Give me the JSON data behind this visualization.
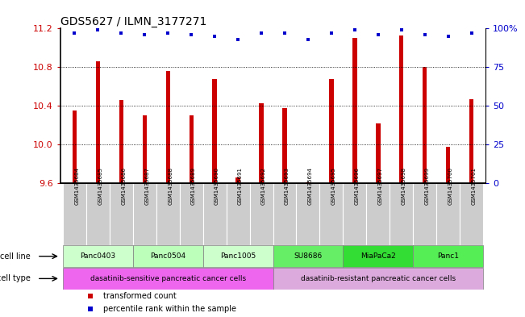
{
  "title": "GDS5627 / ILMN_3177271",
  "samples": [
    "GSM1435684",
    "GSM1435685",
    "GSM1435686",
    "GSM1435687",
    "GSM1435688",
    "GSM1435689",
    "GSM1435690",
    "GSM1435691",
    "GSM1435692",
    "GSM1435693",
    "GSM1435694",
    "GSM1435695",
    "GSM1435696",
    "GSM1435697",
    "GSM1435698",
    "GSM1435699",
    "GSM1435700",
    "GSM1435701"
  ],
  "bar_values": [
    10.35,
    10.86,
    10.46,
    10.3,
    10.76,
    10.3,
    10.68,
    9.66,
    10.43,
    10.38,
    9.61,
    10.68,
    11.1,
    10.22,
    11.13,
    10.8,
    9.98,
    10.47
  ],
  "percentile_values": [
    97,
    99,
    97,
    96,
    97,
    96,
    95,
    93,
    97,
    97,
    93,
    97,
    99,
    96,
    99,
    96,
    95,
    97
  ],
  "ylim": [
    9.6,
    11.2
  ],
  "yticks": [
    9.6,
    10.0,
    10.4,
    10.8,
    11.2
  ],
  "right_yticks": [
    0,
    25,
    50,
    75,
    100
  ],
  "right_ylim": [
    0,
    100
  ],
  "bar_color": "#cc0000",
  "percentile_color": "#0000cc",
  "cell_lines": [
    {
      "label": "Panc0403",
      "start": 0,
      "end": 3,
      "color": "#ccffcc"
    },
    {
      "label": "Panc0504",
      "start": 3,
      "end": 6,
      "color": "#bbffbb"
    },
    {
      "label": "Panc1005",
      "start": 6,
      "end": 9,
      "color": "#ccffcc"
    },
    {
      "label": "SU8686",
      "start": 9,
      "end": 12,
      "color": "#66ee66"
    },
    {
      "label": "MiaPaCa2",
      "start": 12,
      "end": 15,
      "color": "#33dd33"
    },
    {
      "label": "Panc1",
      "start": 15,
      "end": 18,
      "color": "#55ee55"
    }
  ],
  "cell_types": [
    {
      "label": "dasatinib-sensitive pancreatic cancer cells",
      "start": 0,
      "end": 9,
      "color": "#ee66ee"
    },
    {
      "label": "dasatinib-resistant pancreatic cancer cells",
      "start": 9,
      "end": 18,
      "color": "#ddaadd"
    }
  ],
  "legend_items": [
    {
      "label": "transformed count",
      "color": "#cc0000"
    },
    {
      "label": "percentile rank within the sample",
      "color": "#0000cc"
    }
  ],
  "tick_bg_color": "#cccccc",
  "n_samples": 18
}
